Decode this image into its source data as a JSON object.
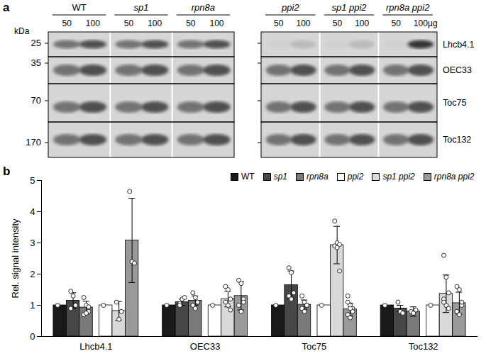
{
  "panel_a": {
    "label": "a",
    "kda_label": "kDa",
    "markers": [
      25,
      35,
      70,
      170
    ],
    "unit": "μg",
    "lanes": [
      "50",
      "100"
    ],
    "groups_left": [
      "WT",
      "sp1",
      "rpn8a"
    ],
    "groups_right": [
      "ppi2",
      "sp1 ppi2",
      "rpn8a ppi2"
    ],
    "proteins": [
      "Lhcb4.1",
      "OEC33",
      "Toc75",
      "Toc132"
    ]
  },
  "chart_data": {
    "type": "bar",
    "panel_label": "b",
    "ylabel": "Rel. signal intensity",
    "categories": [
      "Lhcb4.1",
      "OEC33",
      "Toc75",
      "Toc132"
    ],
    "ylim": [
      0,
      5
    ],
    "yticks": [
      0,
      1,
      2,
      3,
      4,
      5
    ],
    "grid": false,
    "legend": "top",
    "series": [
      {
        "name": "WT",
        "color": "#1a1a1a",
        "values": [
          1,
          1,
          1,
          1
        ],
        "errors": [
          0,
          0,
          0,
          0
        ],
        "points": [
          [
            1
          ],
          [
            1
          ],
          [
            1
          ],
          [
            1
          ]
        ]
      },
      {
        "name": "sp1",
        "color": "#474747",
        "values": [
          1.15,
          1.1,
          1.65,
          0.9
        ],
        "errors": [
          0.25,
          0.1,
          0.45,
          0.1
        ],
        "points": [
          [
            1.45,
            1.3,
            1.0,
            0.9
          ],
          [
            1.05,
            1.2,
            1.25,
            1.0
          ],
          [
            2.2,
            2.05,
            1.4,
            1.3,
            1.2
          ],
          [
            1.1,
            0.8,
            0.75
          ]
        ]
      },
      {
        "name": "rpn8a",
        "color": "#7a7a7a",
        "values": [
          0.93,
          1.15,
          1.02,
          0.8
        ],
        "errors": [
          0.2,
          0.15,
          0.15,
          0.15
        ],
        "points": [
          [
            1.25,
            1.0,
            0.8,
            0.7,
            0.75,
            0.95
          ],
          [
            1.4,
            1.25,
            1.1,
            1.0,
            0.9,
            1.1
          ],
          [
            1.3,
            1.1,
            1.0,
            0.9,
            0.8,
            1.0
          ],
          [
            0.8,
            0.75,
            0.85
          ]
        ]
      },
      {
        "name": "ppi2",
        "color": "#ffffff",
        "values": [
          1,
          1,
          1,
          1
        ],
        "errors": [
          0,
          0,
          0,
          0
        ],
        "points": [
          [
            1
          ],
          [
            1
          ],
          [
            1
          ],
          [
            1
          ]
        ]
      },
      {
        "name": "sp1 ppi2",
        "color": "#d9d9d9",
        "values": [
          0.82,
          1.2,
          2.93,
          1.37
        ],
        "errors": [
          0.3,
          0.25,
          0.6,
          0.6
        ],
        "points": [
          [
            1.1,
            0.55,
            0.8
          ],
          [
            1.6,
            1.5,
            1.2,
            1.1,
            1.0,
            0.85
          ],
          [
            3.7,
            3.0,
            2.95,
            2.9,
            2.85,
            2.1
          ],
          [
            2.6,
            1.9,
            1.4,
            1.2,
            1.0,
            0.9,
            1.1
          ]
        ]
      },
      {
        "name": "rpn8a ppi2",
        "color": "#999999",
        "values": [
          3.08,
          1.3,
          0.87,
          1.07
        ],
        "errors": [
          1.35,
          0.45,
          0.2,
          0.35
        ],
        "points": [
          [
            4.65,
            2.4,
            2.35
          ],
          [
            1.8,
            1.7,
            1.2,
            1.0,
            0.8,
            1.1
          ],
          [
            1.3,
            1.0,
            0.9,
            0.7,
            0.6,
            0.8,
            1.1,
            0.9
          ],
          [
            1.6,
            1.5,
            1.0,
            0.8,
            0.7,
            1.1
          ]
        ]
      }
    ]
  }
}
